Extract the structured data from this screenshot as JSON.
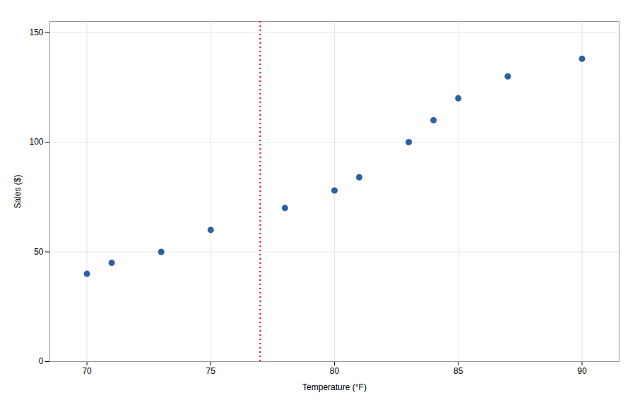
{
  "chart_data": {
    "type": "scatter",
    "x": [
      70,
      71,
      73,
      75,
      78,
      80,
      81,
      83,
      84,
      85,
      87,
      90
    ],
    "values": [
      40,
      45,
      50,
      60,
      70,
      78,
      84,
      100,
      110,
      120,
      130,
      138
    ],
    "color": "#2d5fa6",
    "xlabel": "Temperature (°F)",
    "ylabel": "Sales ($)",
    "xlim": [
      68.5,
      91.5
    ],
    "ylim": [
      0,
      155
    ],
    "xticks": [
      70,
      75,
      80,
      85,
      90
    ],
    "yticks": [
      0,
      50,
      100,
      150
    ],
    "grid": true,
    "reference_lines": [
      {
        "x": 77,
        "color": "#e00000",
        "line_style": "dotted"
      }
    ]
  }
}
